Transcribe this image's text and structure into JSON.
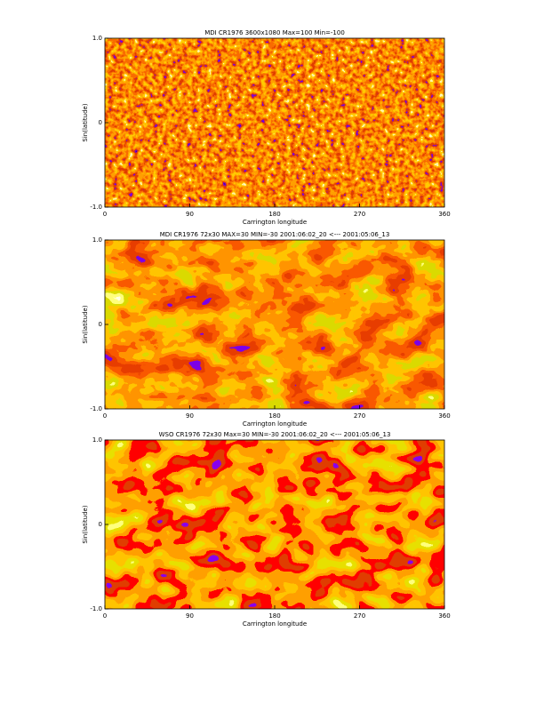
{
  "chart_data": [
    {
      "type": "image",
      "title": "MDI  CR1976  3600x1080  Max=100  Min=-100",
      "xlabel": "Carrington longitude",
      "ylabel": "Sin(latitude)",
      "xlim": [
        0,
        360
      ],
      "xticks": [
        0,
        90,
        180,
        270,
        360
      ],
      "ylim": [
        -1,
        1
      ],
      "yticks": [
        {
          "value": -1,
          "label": "-1.0"
        },
        0,
        {
          "value": 1,
          "label": "1.0"
        }
      ]
    },
    {
      "type": "image",
      "title": "MDI CR1976 72x30  MAX=30 MIN=-30      2001:06:02_20 <--- 2001:05:06_13",
      "xlabel": "Carrington longitude",
      "ylabel": "Sin(latitude)",
      "xlim": [
        0,
        360
      ],
      "xticks": [
        0,
        90,
        180,
        270,
        360
      ],
      "ylim": [
        -1,
        1
      ],
      "yticks": [
        {
          "value": -1,
          "label": "-1.0"
        },
        0,
        {
          "value": 1,
          "label": "1.0"
        }
      ]
    },
    {
      "type": "image",
      "title": "WSO CR1976 72x30  Max=30  MIN=-30     2001:06:02_20 <--- 2001:05:06_13",
      "xlabel": "Carrington longitude",
      "ylabel": "Sin(latitude)",
      "xlim": [
        0,
        360
      ],
      "xticks": [
        0,
        90,
        180,
        270,
        360
      ],
      "ylim": [
        -1,
        1
      ],
      "yticks": [
        {
          "value": -1,
          "label": "-1.0"
        },
        0,
        {
          "value": 1,
          "label": "1.0"
        }
      ]
    }
  ]
}
